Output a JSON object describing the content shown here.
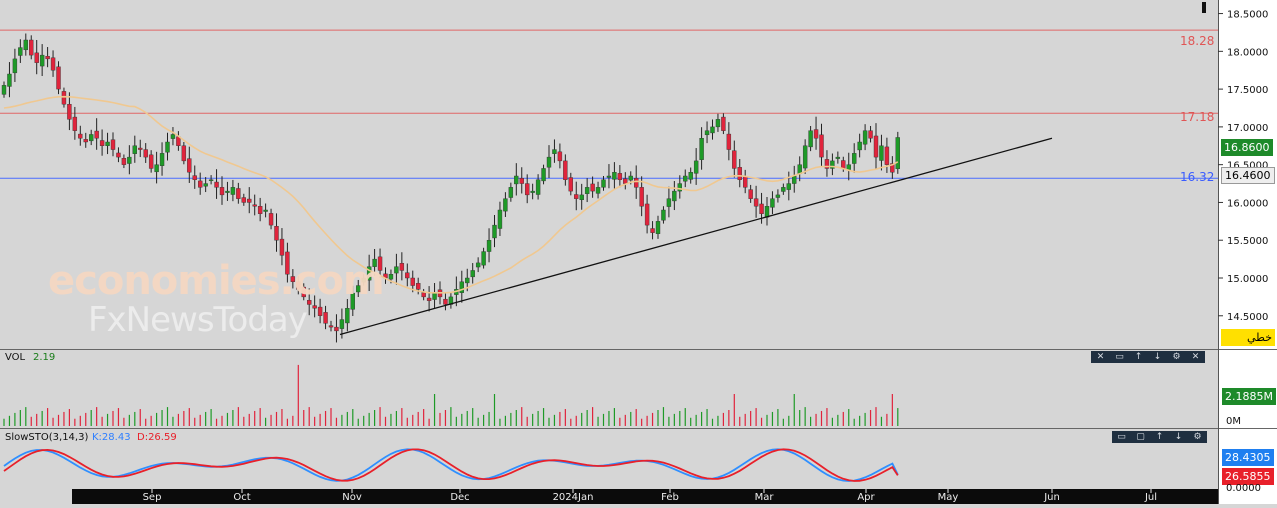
{
  "price_panel": {
    "level_labels": [
      "18.28",
      "17.18",
      "16.32"
    ],
    "last_price": "16.8600",
    "prev_price": "16.4600",
    "toolbar_label": "خطي"
  },
  "volume_panel": {
    "title": "VOL",
    "value": "2.19",
    "axis_value": "2.1885M",
    "axis_zero": "0M"
  },
  "stoch_panel": {
    "title": "SlowSTO(3,14,3)",
    "k_text": "K:28.43",
    "d_text": "D:26.59",
    "k_value_tag": "28.4305",
    "d_value_tag": "26.5855",
    "axis_zero": "0.0000"
  },
  "panel_controls": [
    "close-icon",
    "minimize-icon",
    "up-icon",
    "down-icon",
    "settings-icon"
  ],
  "watermark": {
    "line1": "economies.com",
    "line2": "FxNewsToday"
  },
  "colors": {
    "bull": "#1e9a27",
    "bear": "#e0243c",
    "ma": "#f0c890",
    "resistance": "#e06666",
    "support": "#4a6cff",
    "k_line": "#2f8fff",
    "d_line": "#e8202a"
  },
  "chart_data": {
    "type": "candlestick",
    "y_ticks": [
      "18.5000",
      "18.0000",
      "17.5000",
      "17.0000",
      "16.5000",
      "16.0000",
      "15.5000",
      "15.0000",
      "14.5000"
    ],
    "ylim": [
      14.1,
      18.6
    ],
    "x_ticks": [
      "Sep",
      "Oct",
      "Nov",
      "Dec",
      "2024Jan",
      "Feb",
      "Mar",
      "Apr",
      "May",
      "Jun",
      "Jul"
    ],
    "horizontal_levels": [
      {
        "value": 18.28,
        "role": "resistance"
      },
      {
        "value": 17.18,
        "role": "resistance"
      },
      {
        "value": 16.32,
        "role": "support"
      }
    ],
    "trendline": {
      "from": [
        "Nov",
        14.2
      ],
      "to": [
        "Jun",
        16.85
      ]
    },
    "closes": [
      17.55,
      17.7,
      17.9,
      18.05,
      18.15,
      17.95,
      17.85,
      17.95,
      17.9,
      17.75,
      17.5,
      17.3,
      17.1,
      16.95,
      16.85,
      16.8,
      16.9,
      16.85,
      16.75,
      16.8,
      16.7,
      16.6,
      16.5,
      16.6,
      16.75,
      16.7,
      16.6,
      16.45,
      16.5,
      16.65,
      16.8,
      16.9,
      16.75,
      16.55,
      16.4,
      16.3,
      16.2,
      16.25,
      16.3,
      16.2,
      16.1,
      16.15,
      16.2,
      16.05,
      16.0,
      16.0,
      15.95,
      15.85,
      15.9,
      15.7,
      15.5,
      15.3,
      15.05,
      14.95,
      14.85,
      14.75,
      14.65,
      14.6,
      14.5,
      14.4,
      14.35,
      14.3,
      14.45,
      14.6,
      14.8,
      14.9,
      15.0,
      15.15,
      15.25,
      15.1,
      15.0,
      15.05,
      15.15,
      15.1,
      15.0,
      14.9,
      14.85,
      14.75,
      14.7,
      14.8,
      14.75,
      14.65,
      14.75,
      14.85,
      14.95,
      15.0,
      15.1,
      15.2,
      15.35,
      15.5,
      15.7,
      15.9,
      16.05,
      16.2,
      16.35,
      16.25,
      16.1,
      16.15,
      16.3,
      16.45,
      16.6,
      16.7,
      16.55,
      16.3,
      16.15,
      16.05,
      16.1,
      16.2,
      16.15,
      16.2,
      16.3,
      16.35,
      16.4,
      16.3,
      16.25,
      16.35,
      16.2,
      15.95,
      15.7,
      15.6,
      15.75,
      15.9,
      16.05,
      16.15,
      16.25,
      16.35,
      16.4,
      16.55,
      16.85,
      16.95,
      17.0,
      17.1,
      16.95,
      16.7,
      16.45,
      16.3,
      16.2,
      16.05,
      15.95,
      15.85,
      15.95,
      16.05,
      16.1,
      16.2,
      16.25,
      16.35,
      16.5,
      16.75,
      16.95,
      16.85,
      16.6,
      16.45,
      16.55,
      16.6,
      16.45,
      16.5,
      16.65,
      16.8,
      16.95,
      16.85,
      16.6,
      16.75,
      16.5,
      16.4,
      16.86
    ],
    "volume_max_label": "2.1885M",
    "stochastic": {
      "k_last": 28.43,
      "d_last": 26.59
    }
  }
}
